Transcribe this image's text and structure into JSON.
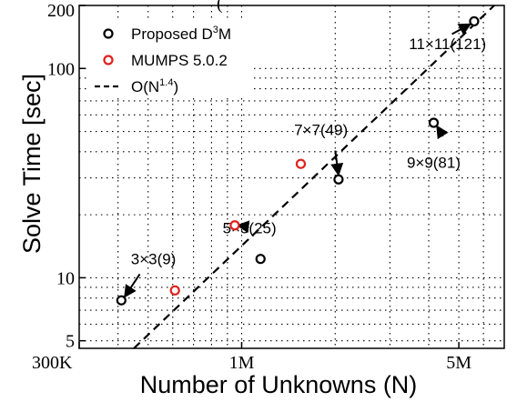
{
  "chart_data": {
    "type": "scatter",
    "title": "",
    "xlabel": "Number of Unknowns (N)",
    "ylabel": "Solve Time [sec]",
    "xscale": "log",
    "yscale": "log",
    "xlim": [
      300000,
      7000000
    ],
    "ylim": [
      4.6,
      200
    ],
    "grid": "dotted",
    "legend_position": "top-left",
    "x_ticks": [
      {
        "value": 300000,
        "label": "300K"
      },
      {
        "value": 1000000,
        "label": "1M"
      },
      {
        "value": 5000000,
        "label": "5M"
      }
    ],
    "y_ticks": [
      {
        "value": 5,
        "label": "5"
      },
      {
        "value": 10,
        "label": "10"
      },
      {
        "value": 100,
        "label": "100"
      },
      {
        "value": 200,
        "label": "200"
      }
    ],
    "series": [
      {
        "name": "Proposed D³M",
        "kind": "marker",
        "color": "#000000",
        "points": [
          {
            "x": 410000,
            "y": 7.8
          },
          {
            "x": 1150000,
            "y": 12.3
          },
          {
            "x": 2050000,
            "y": 29.5
          },
          {
            "x": 4150000,
            "y": 55
          },
          {
            "x": 5600000,
            "y": 168
          }
        ]
      },
      {
        "name": "MUMPS 5.0.2",
        "kind": "marker",
        "color": "#e0201c",
        "points": [
          {
            "x": 610000,
            "y": 8.7
          },
          {
            "x": 950000,
            "y": 17.8
          },
          {
            "x": 1550000,
            "y": 35
          }
        ]
      },
      {
        "name": "O(N^1.4)",
        "kind": "line",
        "color": "#000000",
        "dash": "dashed",
        "points": [
          {
            "x": 450000,
            "y": 4.6
          },
          {
            "x": 6500000,
            "y": 200
          }
        ]
      }
    ],
    "legend": [
      {
        "base": "Proposed D",
        "sup": "3",
        "tail": "M",
        "color": "#000000",
        "kind": "marker"
      },
      {
        "base": "MUMPS 5.0.2",
        "sup": "",
        "tail": "",
        "color": "#e0201c",
        "kind": "marker"
      },
      {
        "base": "O(N",
        "sup": "1.4",
        "tail": ")",
        "color": "#000000",
        "kind": "line"
      }
    ],
    "annotations": [
      {
        "text": "3×3(9)",
        "tx": 520000,
        "ty": 11.6,
        "ax": 470000,
        "ay": 10.4,
        "hx": 420000,
        "hy": 8.1
      },
      {
        "text": "5×5(25)",
        "tx": 1060000,
        "ty": 16.3,
        "ax": 1030000,
        "ay": 17.6,
        "hx": 970000,
        "hy": 17.8
      },
      {
        "text": "7×7(49)",
        "tx": 1800000,
        "ty": 48,
        "ax": 2000000,
        "ay": 40.5,
        "hx": 2050000,
        "hy": 31
      },
      {
        "text": "9×9(81)",
        "tx": 4150000,
        "ty": 33.5,
        "ax": 4450000,
        "ay": 47.5,
        "hx": 4250000,
        "hy": 53
      },
      {
        "text": "11×11(121)",
        "tx": 4600000,
        "ty": 124,
        "ax": 4750000,
        "ay": 146,
        "hx": 5450000,
        "hy": 163
      }
    ],
    "partial_title": "(",
    "extra_labels": [
      "(",
      "(",
      "(",
      "(",
      "("
    ]
  }
}
